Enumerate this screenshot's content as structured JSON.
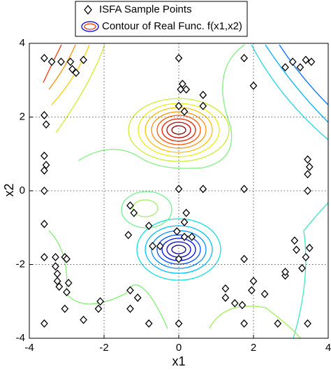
{
  "chart_data": {
    "type": "scatter",
    "xlabel": "x1",
    "ylabel": "x2",
    "legend": [
      "ISFA Sample Points",
      "Contour of Real Func. f(x1,x2)"
    ],
    "xlim": [
      -4,
      4
    ],
    "ylim": [
      -4,
      4
    ],
    "xticks": [
      -4,
      -2,
      0,
      2,
      4
    ],
    "yticks": [
      -4,
      -2,
      0,
      2,
      4
    ],
    "grid": true,
    "series": [
      {
        "name": "ISFA Sample Points",
        "color": "#000000",
        "x": [
          -3.6,
          -3.4,
          -3.15,
          -2.9,
          -2.55,
          -2.85,
          -2.75,
          0,
          1.75,
          3.4,
          3.05,
          2.85,
          3.25,
          3.55,
          2.0,
          0.1,
          0.05,
          0.2,
          0.65,
          0.65,
          0,
          0.15,
          -3.6,
          -3.55,
          -3.6,
          -3.55,
          -3.6,
          3.45,
          3.5,
          3.45,
          -3.6,
          -1.3,
          -1.2,
          -1.35,
          -0.8,
          -0.5,
          -0.7,
          0,
          0.65,
          1.75,
          3.45,
          -3.6,
          0.2,
          0.15,
          -0.05,
          0.15,
          0.35,
          -3.6,
          -3.3,
          -3.05,
          -3.25,
          -3.0,
          -3.3,
          0,
          1.75,
          3.1,
          3.15,
          3.5,
          3.4,
          3.3,
          2.85,
          2.85,
          -3.25,
          -3.2,
          -2.95,
          -3.0,
          -1.3,
          -1.1,
          -1.3,
          1.25,
          1.25,
          1.5,
          1.7,
          2.3,
          2.0,
          1.95,
          -3.05,
          -2.55,
          -3.6,
          -0.8,
          0,
          1.75,
          2.65,
          3.45,
          -2.15,
          -2.1
        ],
        "y": [
          3.6,
          3.5,
          3.5,
          3.5,
          3.55,
          3.3,
          3.2,
          3.6,
          3.6,
          3.55,
          3.5,
          3.35,
          3.35,
          3.5,
          2.85,
          2.9,
          2.75,
          2.75,
          2.6,
          2.3,
          2.3,
          2.15,
          2.05,
          1.8,
          0.95,
          0.7,
          0.55,
          0.85,
          0.65,
          0.45,
          0,
          -0.4,
          -0.6,
          -1.2,
          -0.95,
          -1.5,
          -1.5,
          0.05,
          0.05,
          0.05,
          0,
          -0.9,
          -0.6,
          -0.85,
          -1.1,
          -1.25,
          -1.25,
          -1.8,
          -1.8,
          -1.8,
          -2.25,
          -1.85,
          -2.05,
          -1.85,
          -1.85,
          -1.35,
          -1.6,
          -1.55,
          -1.8,
          -2.1,
          -2.3,
          -2.2,
          -2.45,
          -2.6,
          -2.5,
          -2.75,
          -2.7,
          -2.9,
          -3.2,
          -2.65,
          -2.9,
          -3.05,
          -3.1,
          -2.8,
          -2.45,
          -2.7,
          -3.2,
          -3.5,
          -3.6,
          -3.6,
          -3.6,
          -3.6,
          -3.6,
          -3.6,
          -3.2,
          -3.0
        ]
      }
    ]
  }
}
